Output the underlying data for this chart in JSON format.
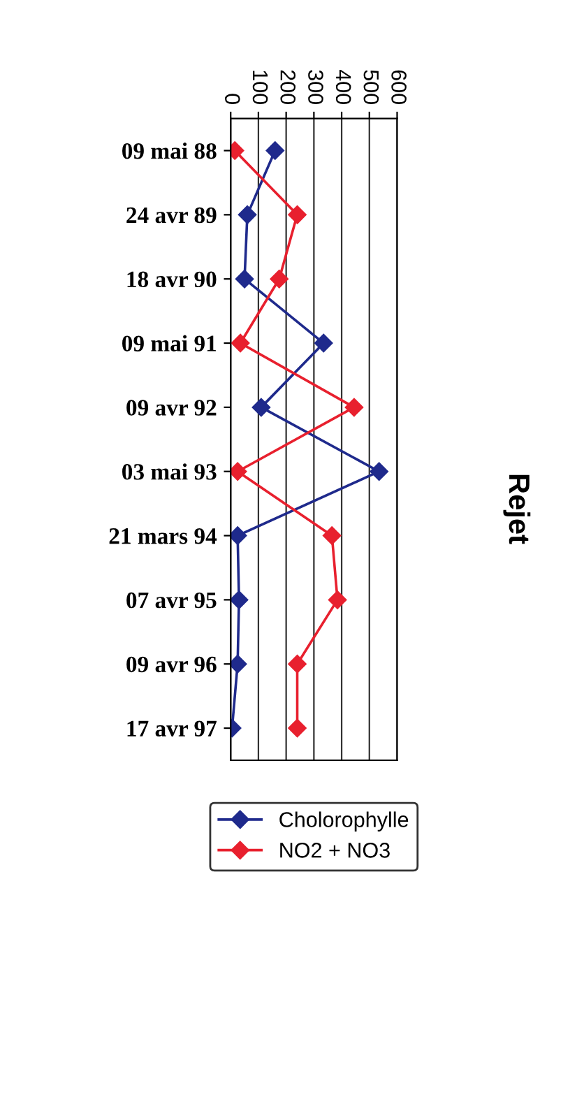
{
  "chart_data": {
    "type": "line",
    "orientation": "horizontal",
    "title": "Rejet",
    "categories": [
      "09 mai 88",
      "24 avr 89",
      "18 avr 90",
      "09 mai 91",
      "09 avr 92",
      "03 mai 93",
      "21 mars 94",
      "07 avr 95",
      "09 avr 96",
      "17 avr 97"
    ],
    "series": [
      {
        "name": "Cholorophylle",
        "color": "#1f2a8c",
        "values": [
          160,
          60,
          50,
          335,
          110,
          535,
          25,
          30,
          25,
          5
        ]
      },
      {
        "name": "NO2 + NO3",
        "color": "#e8202e",
        "values": [
          15,
          240,
          175,
          35,
          445,
          25,
          365,
          385,
          240,
          240
        ]
      }
    ],
    "xlim": [
      0,
      600
    ],
    "xticks": [
      0,
      100,
      200,
      300,
      400,
      500,
      600
    ],
    "grid": "x",
    "marker": "diamond",
    "legend": "bottom"
  }
}
